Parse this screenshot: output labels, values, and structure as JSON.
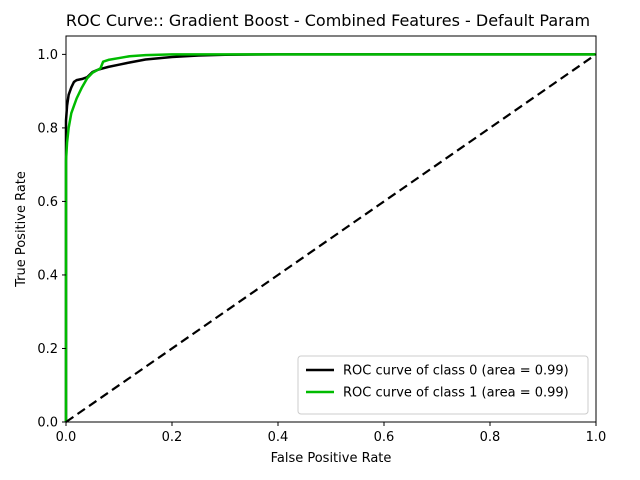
{
  "chart_data": {
    "type": "line",
    "title": "ROC Curve:: Gradient Boost - Combined Features - Default Param",
    "xlabel": "False Positive Rate",
    "ylabel": "True Positive Rate",
    "xlim": [
      0.0,
      1.0
    ],
    "ylim": [
      0.0,
      1.05
    ],
    "xticks": [
      "0.0",
      "0.2",
      "0.4",
      "0.6",
      "0.8",
      "1.0"
    ],
    "yticks": [
      "0.0",
      "0.2",
      "0.4",
      "0.6",
      "0.8",
      "1.0"
    ],
    "grid": false,
    "legend_position": "lower-right",
    "series": [
      {
        "name": "ROC curve of class 0 (area = 0.99)",
        "color": "#000000",
        "x": [
          0.0,
          0.0,
          0.002,
          0.005,
          0.01,
          0.015,
          0.02,
          0.03,
          0.04,
          0.05,
          0.06,
          0.07,
          0.08,
          0.1,
          0.12,
          0.15,
          0.2,
          0.25,
          0.3,
          0.4,
          0.6,
          0.8,
          1.0
        ],
        "y": [
          0.0,
          0.82,
          0.86,
          0.89,
          0.91,
          0.925,
          0.93,
          0.933,
          0.938,
          0.952,
          0.958,
          0.962,
          0.966,
          0.972,
          0.978,
          0.986,
          0.993,
          0.997,
          0.999,
          1.0,
          1.0,
          1.0,
          1.0
        ]
      },
      {
        "name": "ROC curve of class 1 (area = 0.99)",
        "color": "#00bb00",
        "x": [
          0.0,
          0.0,
          0.002,
          0.005,
          0.01,
          0.015,
          0.02,
          0.03,
          0.04,
          0.05,
          0.06,
          0.065,
          0.07,
          0.08,
          0.1,
          0.12,
          0.15,
          0.2,
          0.3,
          0.4,
          0.6,
          0.8,
          1.0
        ],
        "y": [
          0.0,
          0.71,
          0.76,
          0.8,
          0.84,
          0.86,
          0.88,
          0.91,
          0.935,
          0.95,
          0.958,
          0.962,
          0.98,
          0.985,
          0.99,
          0.995,
          0.998,
          1.0,
          1.0,
          1.0,
          1.0,
          1.0,
          1.0
        ]
      },
      {
        "name": "",
        "color": "#000000",
        "style": "dashed",
        "x": [
          0.0,
          1.0
        ],
        "y": [
          0.0,
          1.0
        ]
      }
    ]
  }
}
